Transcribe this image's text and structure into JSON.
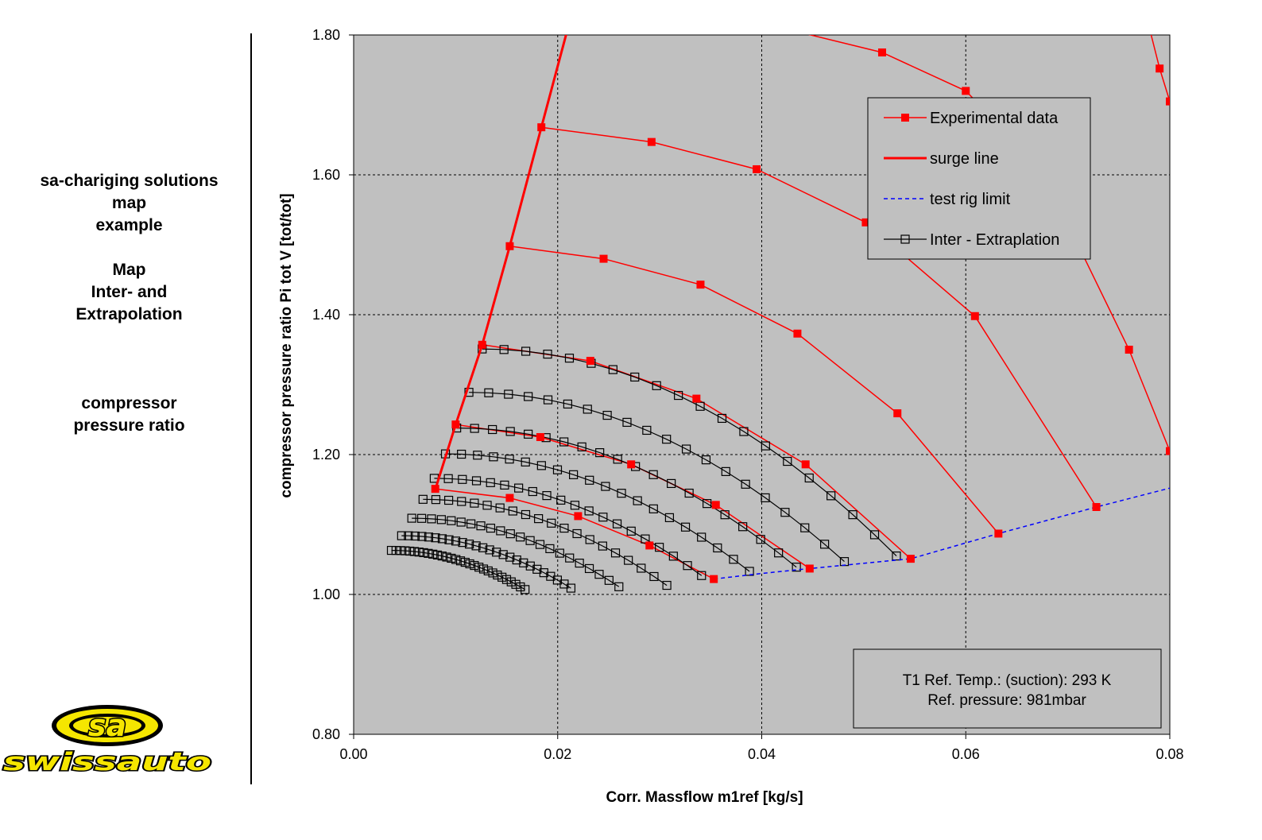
{
  "sidebar": {
    "line1": "sa-chariging solutions",
    "line2": "map",
    "line3": "example",
    "line4": "Map",
    "line5": "Inter- and",
    "line6": "Extrapolation",
    "line7": "compressor",
    "line8": "pressure ratio"
  },
  "logo": {
    "text": "sa",
    "brand": "swissauto",
    "colors": {
      "yellow": "#f5e600",
      "outline": "#000000"
    }
  },
  "chart_data": {
    "type": "line",
    "xlabel": "Corr. Massflow m1ref [kg/s]",
    "ylabel": "compressor pressure ratio Pi tot V [tot/tot]",
    "xlim": [
      0,
      0.08
    ],
    "ylim": [
      0.8,
      1.8
    ],
    "xticks": [
      "0.00",
      "0.02",
      "0.04",
      "0.06",
      "0.08"
    ],
    "yticks": [
      "0.80",
      "1.00",
      "1.20",
      "1.40",
      "1.60",
      "1.80"
    ],
    "grid": true,
    "plot_background": "#c0c0c0",
    "legend_position": "top-right",
    "legend": [
      {
        "label": "Experimental data",
        "style": "red-square"
      },
      {
        "label": "surge line",
        "style": "red-thick"
      },
      {
        "label": "test rig limit",
        "style": "blue-dashed"
      },
      {
        "label": "Inter - Extraplation",
        "style": "black-open-square"
      }
    ],
    "annotation": {
      "line1": "T1 Ref. Temp.: (suction): 293 K",
      "line2": "Ref. pressure: 981mbar"
    },
    "colors": {
      "experimental": "#ff0000",
      "surge": "#ff0000",
      "rig_limit": "#0000ff",
      "interp": "#000000"
    },
    "surge_line": [
      [
        0.008,
        1.15
      ],
      [
        0.01,
        1.243
      ],
      [
        0.0126,
        1.357
      ],
      [
        0.0153,
        1.498
      ],
      [
        0.0184,
        1.668
      ],
      [
        0.021,
        1.81
      ]
    ],
    "test_rig_limit": [
      [
        0.0353,
        1.022
      ],
      [
        0.04,
        1.03
      ],
      [
        0.0447,
        1.037
      ],
      [
        0.0546,
        1.051
      ],
      [
        0.0632,
        1.087
      ],
      [
        0.0728,
        1.125
      ],
      [
        0.08,
        1.152
      ]
    ],
    "experimental_series": [
      {
        "points": [
          [
            0.008,
            1.151
          ],
          [
            0.0153,
            1.138
          ],
          [
            0.022,
            1.112
          ],
          [
            0.029,
            1.07
          ],
          [
            0.0353,
            1.022
          ]
        ]
      },
      {
        "points": [
          [
            0.01,
            1.243
          ],
          [
            0.0183,
            1.225
          ],
          [
            0.0272,
            1.186
          ],
          [
            0.0355,
            1.128
          ],
          [
            0.0447,
            1.037
          ]
        ]
      },
      {
        "points": [
          [
            0.0126,
            1.357
          ],
          [
            0.0232,
            1.334
          ],
          [
            0.0336,
            1.28
          ],
          [
            0.0443,
            1.186
          ],
          [
            0.0546,
            1.051
          ]
        ]
      },
      {
        "points": [
          [
            0.0153,
            1.498
          ],
          [
            0.0245,
            1.48
          ],
          [
            0.034,
            1.443
          ],
          [
            0.0435,
            1.373
          ],
          [
            0.0533,
            1.259
          ],
          [
            0.0632,
            1.087
          ]
        ]
      },
      {
        "points": [
          [
            0.0184,
            1.668
          ],
          [
            0.0292,
            1.647
          ],
          [
            0.0395,
            1.608
          ],
          [
            0.0502,
            1.532
          ],
          [
            0.0609,
            1.398
          ],
          [
            0.0728,
            1.125
          ]
        ]
      },
      {
        "points": [
          [
            0.021,
            1.81
          ],
          [
            0.031,
            1.81
          ],
          [
            0.042,
            1.81
          ],
          [
            0.0518,
            1.775
          ],
          [
            0.06,
            1.72
          ],
          [
            0.064,
            1.66
          ],
          [
            0.07,
            1.53
          ],
          [
            0.076,
            1.35
          ],
          [
            0.08,
            1.205
          ]
        ]
      },
      {
        "points": [
          [
            0.078,
            1.81
          ],
          [
            0.079,
            1.752
          ],
          [
            0.08,
            1.705
          ]
        ]
      }
    ],
    "interp_series": [
      {
        "x0": 0.0037,
        "x1": 0.0168,
        "y0": 1.063,
        "y1": 1.007,
        "n": 30
      },
      {
        "x0": 0.0047,
        "x1": 0.0213,
        "y0": 1.084,
        "y1": 1.009,
        "n": 26
      },
      {
        "x0": 0.0057,
        "x1": 0.026,
        "y0": 1.109,
        "y1": 1.011,
        "n": 22
      },
      {
        "x0": 0.0068,
        "x1": 0.0307,
        "y0": 1.136,
        "y1": 1.013,
        "n": 20
      },
      {
        "x0": 0.0079,
        "x1": 0.0341,
        "y0": 1.166,
        "y1": 1.027,
        "n": 20
      },
      {
        "x0": 0.009,
        "x1": 0.0388,
        "y0": 1.201,
        "y1": 1.033,
        "n": 20
      },
      {
        "x0": 0.0101,
        "x1": 0.0434,
        "y0": 1.238,
        "y1": 1.039,
        "n": 20
      },
      {
        "x0": 0.0113,
        "x1": 0.0481,
        "y0": 1.289,
        "y1": 1.047,
        "n": 20
      },
      {
        "x0": 0.0126,
        "x1": 0.0532,
        "y0": 1.351,
        "y1": 1.055,
        "n": 20
      }
    ]
  }
}
